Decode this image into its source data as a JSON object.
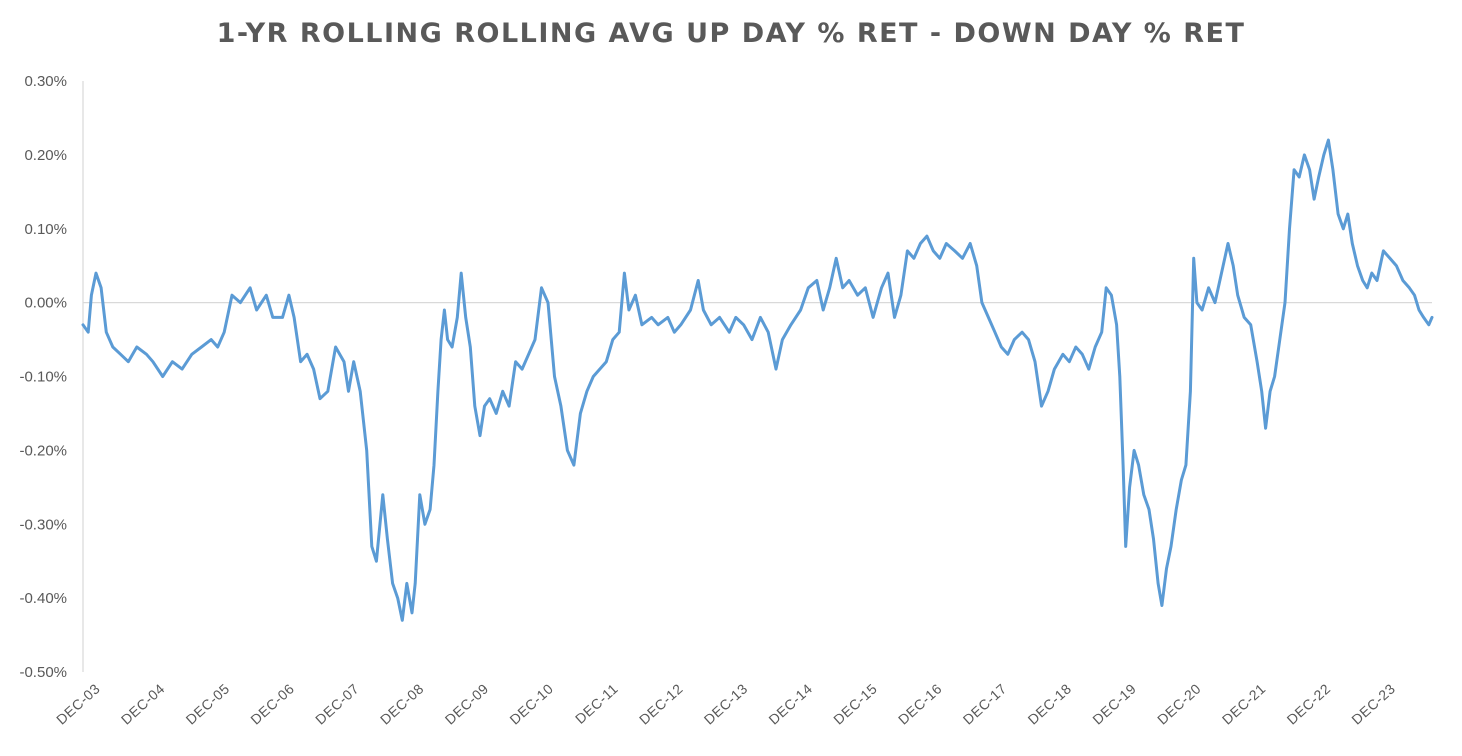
{
  "chart_data": {
    "type": "line",
    "title": "1-YR ROLLING ROLLING AVG UP DAY % RET - DOWN DAY % RET",
    "xlabel": "",
    "ylabel": "",
    "ylim": [
      -0.5,
      0.3
    ],
    "y_unit": "%",
    "y_ticks": [
      "0.30%",
      "0.20%",
      "0.10%",
      "0.00%",
      "-0.10%",
      "-0.20%",
      "-0.30%",
      "-0.40%",
      "-0.50%"
    ],
    "y_tick_values": [
      0.3,
      0.2,
      0.1,
      0.0,
      -0.1,
      -0.2,
      -0.3,
      -0.4,
      -0.5
    ],
    "x_ticks": [
      "DEC-03",
      "DEC-04",
      "DEC-05",
      "DEC-06",
      "DEC-07",
      "DEC-08",
      "DEC-09",
      "DEC-10",
      "DEC-11",
      "DEC-12",
      "DEC-13",
      "DEC-14",
      "DEC-15",
      "DEC-16",
      "DEC-17",
      "DEC-18",
      "DEC-19",
      "DEC-20",
      "DEC-21",
      "DEC-22",
      "DEC-23"
    ],
    "x_range": [
      2003.92,
      2024.75
    ],
    "grid": false,
    "legend": "none",
    "series": [
      {
        "color": "#5B9BD5",
        "points": [
          [
            2003.92,
            -0.03
          ],
          [
            2004.0,
            -0.04
          ],
          [
            2004.05,
            0.01
          ],
          [
            2004.12,
            0.04
          ],
          [
            2004.2,
            0.02
          ],
          [
            2004.28,
            -0.04
          ],
          [
            2004.38,
            -0.06
          ],
          [
            2004.5,
            -0.07
          ],
          [
            2004.62,
            -0.08
          ],
          [
            2004.75,
            -0.06
          ],
          [
            2004.9,
            -0.07
          ],
          [
            2005.0,
            -0.08
          ],
          [
            2005.15,
            -0.1
          ],
          [
            2005.3,
            -0.08
          ],
          [
            2005.45,
            -0.09
          ],
          [
            2005.6,
            -0.07
          ],
          [
            2005.75,
            -0.06
          ],
          [
            2005.9,
            -0.05
          ],
          [
            2006.0,
            -0.06
          ],
          [
            2006.1,
            -0.04
          ],
          [
            2006.22,
            0.01
          ],
          [
            2006.35,
            0.0
          ],
          [
            2006.5,
            0.02
          ],
          [
            2006.6,
            -0.01
          ],
          [
            2006.75,
            0.01
          ],
          [
            2006.85,
            -0.02
          ],
          [
            2007.0,
            -0.02
          ],
          [
            2007.1,
            0.01
          ],
          [
            2007.18,
            -0.02
          ],
          [
            2007.28,
            -0.08
          ],
          [
            2007.38,
            -0.07
          ],
          [
            2007.48,
            -0.09
          ],
          [
            2007.58,
            -0.13
          ],
          [
            2007.7,
            -0.12
          ],
          [
            2007.82,
            -0.06
          ],
          [
            2007.95,
            -0.08
          ],
          [
            2008.02,
            -0.12
          ],
          [
            2008.1,
            -0.08
          ],
          [
            2008.2,
            -0.12
          ],
          [
            2008.3,
            -0.2
          ],
          [
            2008.38,
            -0.33
          ],
          [
            2008.45,
            -0.35
          ],
          [
            2008.55,
            -0.26
          ],
          [
            2008.62,
            -0.32
          ],
          [
            2008.7,
            -0.38
          ],
          [
            2008.78,
            -0.4
          ],
          [
            2008.85,
            -0.43
          ],
          [
            2008.92,
            -0.38
          ],
          [
            2009.0,
            -0.42
          ],
          [
            2009.05,
            -0.38
          ],
          [
            2009.12,
            -0.26
          ],
          [
            2009.2,
            -0.3
          ],
          [
            2009.28,
            -0.28
          ],
          [
            2009.34,
            -0.22
          ],
          [
            2009.4,
            -0.12
          ],
          [
            2009.45,
            -0.05
          ],
          [
            2009.5,
            -0.01
          ],
          [
            2009.55,
            -0.05
          ],
          [
            2009.62,
            -0.06
          ],
          [
            2009.7,
            -0.02
          ],
          [
            2009.76,
            0.04
          ],
          [
            2009.83,
            -0.02
          ],
          [
            2009.9,
            -0.06
          ],
          [
            2009.97,
            -0.14
          ],
          [
            2010.05,
            -0.18
          ],
          [
            2010.12,
            -0.14
          ],
          [
            2010.2,
            -0.13
          ],
          [
            2010.3,
            -0.15
          ],
          [
            2010.4,
            -0.12
          ],
          [
            2010.5,
            -0.14
          ],
          [
            2010.6,
            -0.08
          ],
          [
            2010.7,
            -0.09
          ],
          [
            2010.8,
            -0.07
          ],
          [
            2010.9,
            -0.05
          ],
          [
            2011.0,
            0.02
          ],
          [
            2011.1,
            0.0
          ],
          [
            2011.2,
            -0.1
          ],
          [
            2011.3,
            -0.14
          ],
          [
            2011.4,
            -0.2
          ],
          [
            2011.5,
            -0.22
          ],
          [
            2011.6,
            -0.15
          ],
          [
            2011.7,
            -0.12
          ],
          [
            2011.8,
            -0.1
          ],
          [
            2011.9,
            -0.09
          ],
          [
            2012.0,
            -0.08
          ],
          [
            2012.1,
            -0.05
          ],
          [
            2012.2,
            -0.04
          ],
          [
            2012.28,
            0.04
          ],
          [
            2012.35,
            -0.01
          ],
          [
            2012.45,
            0.01
          ],
          [
            2012.55,
            -0.03
          ],
          [
            2012.7,
            -0.02
          ],
          [
            2012.8,
            -0.03
          ],
          [
            2012.95,
            -0.02
          ],
          [
            2013.05,
            -0.04
          ],
          [
            2013.15,
            -0.03
          ],
          [
            2013.3,
            -0.01
          ],
          [
            2013.42,
            0.03
          ],
          [
            2013.5,
            -0.01
          ],
          [
            2013.62,
            -0.03
          ],
          [
            2013.75,
            -0.02
          ],
          [
            2013.9,
            -0.04
          ],
          [
            2014.0,
            -0.02
          ],
          [
            2014.12,
            -0.03
          ],
          [
            2014.25,
            -0.05
          ],
          [
            2014.38,
            -0.02
          ],
          [
            2014.5,
            -0.04
          ],
          [
            2014.62,
            -0.09
          ],
          [
            2014.72,
            -0.05
          ],
          [
            2014.85,
            -0.03
          ],
          [
            2015.0,
            -0.01
          ],
          [
            2015.12,
            0.02
          ],
          [
            2015.25,
            0.03
          ],
          [
            2015.35,
            -0.01
          ],
          [
            2015.45,
            0.02
          ],
          [
            2015.55,
            0.06
          ],
          [
            2015.65,
            0.02
          ],
          [
            2015.75,
            0.03
          ],
          [
            2015.88,
            0.01
          ],
          [
            2016.0,
            0.02
          ],
          [
            2016.12,
            -0.02
          ],
          [
            2016.25,
            0.02
          ],
          [
            2016.35,
            0.04
          ],
          [
            2016.45,
            -0.02
          ],
          [
            2016.55,
            0.01
          ],
          [
            2016.65,
            0.07
          ],
          [
            2016.75,
            0.06
          ],
          [
            2016.85,
            0.08
          ],
          [
            2016.95,
            0.09
          ],
          [
            2017.05,
            0.07
          ],
          [
            2017.15,
            0.06
          ],
          [
            2017.25,
            0.08
          ],
          [
            2017.38,
            0.07
          ],
          [
            2017.5,
            0.06
          ],
          [
            2017.62,
            0.08
          ],
          [
            2017.72,
            0.05
          ],
          [
            2017.8,
            0.0
          ],
          [
            2017.9,
            -0.02
          ],
          [
            2018.0,
            -0.04
          ],
          [
            2018.1,
            -0.06
          ],
          [
            2018.2,
            -0.07
          ],
          [
            2018.3,
            -0.05
          ],
          [
            2018.42,
            -0.04
          ],
          [
            2018.52,
            -0.05
          ],
          [
            2018.62,
            -0.08
          ],
          [
            2018.72,
            -0.14
          ],
          [
            2018.82,
            -0.12
          ],
          [
            2018.92,
            -0.09
          ],
          [
            2019.05,
            -0.07
          ],
          [
            2019.15,
            -0.08
          ],
          [
            2019.25,
            -0.06
          ],
          [
            2019.35,
            -0.07
          ],
          [
            2019.45,
            -0.09
          ],
          [
            2019.55,
            -0.06
          ],
          [
            2019.65,
            -0.04
          ],
          [
            2019.72,
            0.02
          ],
          [
            2019.8,
            0.01
          ],
          [
            2019.88,
            -0.03
          ],
          [
            2019.93,
            -0.1
          ],
          [
            2019.98,
            -0.22
          ],
          [
            2020.02,
            -0.33
          ],
          [
            2020.08,
            -0.25
          ],
          [
            2020.15,
            -0.2
          ],
          [
            2020.22,
            -0.22
          ],
          [
            2020.3,
            -0.26
          ],
          [
            2020.38,
            -0.28
          ],
          [
            2020.45,
            -0.32
          ],
          [
            2020.52,
            -0.38
          ],
          [
            2020.58,
            -0.41
          ],
          [
            2020.65,
            -0.36
          ],
          [
            2020.72,
            -0.33
          ],
          [
            2020.8,
            -0.28
          ],
          [
            2020.88,
            -0.24
          ],
          [
            2020.95,
            -0.22
          ],
          [
            2021.02,
            -0.12
          ],
          [
            2021.07,
            0.06
          ],
          [
            2021.12,
            0.0
          ],
          [
            2021.2,
            -0.01
          ],
          [
            2021.3,
            0.02
          ],
          [
            2021.4,
            0.0
          ],
          [
            2021.5,
            0.04
          ],
          [
            2021.6,
            0.08
          ],
          [
            2021.68,
            0.05
          ],
          [
            2021.75,
            0.01
          ],
          [
            2021.85,
            -0.02
          ],
          [
            2021.95,
            -0.03
          ],
          [
            2022.05,
            -0.08
          ],
          [
            2022.12,
            -0.12
          ],
          [
            2022.18,
            -0.17
          ],
          [
            2022.25,
            -0.12
          ],
          [
            2022.32,
            -0.1
          ],
          [
            2022.4,
            -0.05
          ],
          [
            2022.48,
            0.0
          ],
          [
            2022.55,
            0.1
          ],
          [
            2022.62,
            0.18
          ],
          [
            2022.7,
            0.17
          ],
          [
            2022.78,
            0.2
          ],
          [
            2022.86,
            0.18
          ],
          [
            2022.93,
            0.14
          ],
          [
            2023.0,
            0.17
          ],
          [
            2023.08,
            0.2
          ],
          [
            2023.15,
            0.22
          ],
          [
            2023.22,
            0.18
          ],
          [
            2023.3,
            0.12
          ],
          [
            2023.38,
            0.1
          ],
          [
            2023.45,
            0.12
          ],
          [
            2023.52,
            0.08
          ],
          [
            2023.6,
            0.05
          ],
          [
            2023.68,
            0.03
          ],
          [
            2023.75,
            0.02
          ],
          [
            2023.82,
            0.04
          ],
          [
            2023.9,
            0.03
          ],
          [
            2024.0,
            0.07
          ],
          [
            2024.1,
            0.06
          ],
          [
            2024.2,
            0.05
          ],
          [
            2024.3,
            0.03
          ],
          [
            2024.4,
            0.02
          ],
          [
            2024.48,
            0.01
          ],
          [
            2024.55,
            -0.01
          ],
          [
            2024.62,
            -0.02
          ],
          [
            2024.7,
            -0.03
          ],
          [
            2024.75,
            -0.02
          ]
        ]
      }
    ]
  }
}
